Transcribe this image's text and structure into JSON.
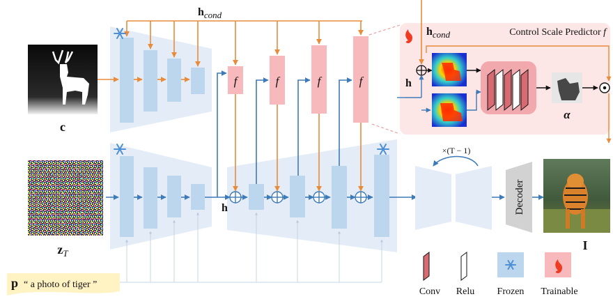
{
  "labels": {
    "h_cond_top": "h",
    "h_cond_top_sub": "cond",
    "h_cond_panel": "h",
    "h_cond_panel_sub": "cond",
    "panel_title": "Control Scale Predictor",
    "panel_title_f": "f",
    "h_panel": "h",
    "alpha": "α",
    "odot": "⊙",
    "c": "c",
    "z": "z",
    "z_sub": "T",
    "h_mid": "h",
    "f": "f",
    "loop": "×(T − 1)",
    "decoder": "Decoder",
    "I": "I",
    "p": "p",
    "prompt": "“ a photo of tiger ”"
  },
  "legend": [
    {
      "key": "conv",
      "label": "Conv"
    },
    {
      "key": "relu",
      "label": "Relu"
    },
    {
      "key": "frozen",
      "label": "Frozen"
    },
    {
      "key": "trainable",
      "label": "Trainable"
    }
  ],
  "colors": {
    "block_blue": "#bcd6ee",
    "trap_blue": "#e4edf7",
    "block_pink": "#f8b9bd",
    "panel_pink": "#fde6e6",
    "arrow_orange": "#e88b3a",
    "arrow_blue": "#3d7ab8",
    "decoder_gray": "#d2d2d2",
    "flame_red": "#ee3b22",
    "snow_blue": "#4f8fd4"
  },
  "icons": [
    "snowflake-icon",
    "flame-icon",
    "oplus-icon",
    "odot-icon"
  ]
}
